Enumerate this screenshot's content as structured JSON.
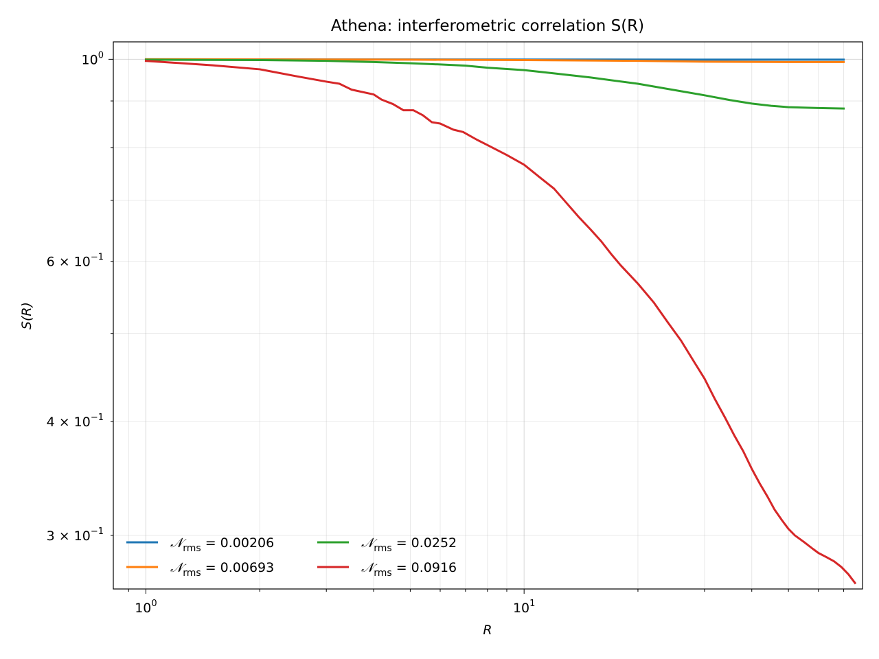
{
  "chart_data": {
    "type": "line",
    "title": "Athena: interferometric correlation S(R)",
    "xlabel": "R",
    "ylabel": "S(R)",
    "xscale": "log",
    "yscale": "log",
    "xlim": [
      0.82,
      78.5
    ],
    "ylim": [
      0.262,
      1.045
    ],
    "x_tick_labels": [
      {
        "value": 1,
        "mantissa": "",
        "base": "10",
        "exp": "0"
      },
      {
        "value": 10,
        "mantissa": "",
        "base": "10",
        "exp": "1"
      }
    ],
    "y_tick_labels": [
      {
        "value": 1.0,
        "mantissa": "",
        "base": "10",
        "exp": "0"
      },
      {
        "value": 0.6,
        "mantissa": "6 × ",
        "base": "10",
        "exp": "−1"
      },
      {
        "value": 0.4,
        "mantissa": "4 × ",
        "base": "10",
        "exp": "−1"
      },
      {
        "value": 0.3,
        "mantissa": "3 × ",
        "base": "10",
        "exp": "−1"
      }
    ],
    "grid": true,
    "legend_placement": "lower-left",
    "series": [
      {
        "name": "𝒩rms = 0.00206",
        "legend_symbol": "𝒩",
        "legend_sub": "rms",
        "legend_value": " = 0.00206",
        "color": "#1f77b4",
        "points": [
          [
            1,
            1.0
          ],
          [
            5,
            0.9995
          ],
          [
            10,
            0.9993
          ],
          [
            30,
            0.9992
          ],
          [
            70,
            0.999
          ]
        ]
      },
      {
        "name": "𝒩rms = 0.00693",
        "legend_symbol": "𝒩",
        "legend_sub": "rms",
        "legend_value": " = 0.00693",
        "color": "#ff7f0e",
        "points": [
          [
            1,
            1.0
          ],
          [
            5,
            0.999
          ],
          [
            10,
            0.998
          ],
          [
            20,
            0.996
          ],
          [
            30,
            0.994
          ],
          [
            50,
            0.993
          ],
          [
            70,
            0.993
          ]
        ]
      },
      {
        "name": "𝒩rms = 0.0252",
        "legend_symbol": "𝒩",
        "legend_sub": "rms",
        "legend_value": " = 0.0252",
        "color": "#2ca02c",
        "points": [
          [
            1,
            0.999
          ],
          [
            2,
            0.998
          ],
          [
            3,
            0.996
          ],
          [
            4,
            0.993
          ],
          [
            5,
            0.99
          ],
          [
            6,
            0.987
          ],
          [
            7,
            0.984
          ],
          [
            8,
            0.979
          ],
          [
            10,
            0.973
          ],
          [
            12,
            0.965
          ],
          [
            15,
            0.955
          ],
          [
            20,
            0.94
          ],
          [
            25,
            0.925
          ],
          [
            30,
            0.913
          ],
          [
            35,
            0.902
          ],
          [
            40,
            0.894
          ],
          [
            45,
            0.889
          ],
          [
            50,
            0.886
          ],
          [
            60,
            0.884
          ],
          [
            70,
            0.883
          ]
        ]
      },
      {
        "name": "𝒩rms = 0.0916",
        "legend_symbol": "𝒩",
        "legend_sub": "rms",
        "legend_value": " = 0.0916",
        "color": "#d62728",
        "points": [
          [
            1,
            0.996
          ],
          [
            1.5,
            0.985
          ],
          [
            2,
            0.975
          ],
          [
            2.5,
            0.958
          ],
          [
            3,
            0.945
          ],
          [
            3.25,
            0.94
          ],
          [
            3.5,
            0.926
          ],
          [
            4,
            0.915
          ],
          [
            4.2,
            0.903
          ],
          [
            4.5,
            0.893
          ],
          [
            4.8,
            0.879
          ],
          [
            5.1,
            0.879
          ],
          [
            5.4,
            0.868
          ],
          [
            5.7,
            0.853
          ],
          [
            6,
            0.85
          ],
          [
            6.5,
            0.837
          ],
          [
            6.9,
            0.832
          ],
          [
            7.5,
            0.816
          ],
          [
            8,
            0.805
          ],
          [
            9,
            0.785
          ],
          [
            10,
            0.766
          ],
          [
            11,
            0.742
          ],
          [
            12,
            0.721
          ],
          [
            13,
            0.694
          ],
          [
            14,
            0.67
          ],
          [
            15,
            0.65
          ],
          [
            16,
            0.631
          ],
          [
            17,
            0.611
          ],
          [
            18,
            0.594
          ],
          [
            19,
            0.58
          ],
          [
            20,
            0.567
          ],
          [
            22,
            0.541
          ],
          [
            24,
            0.514
          ],
          [
            26,
            0.491
          ],
          [
            28,
            0.467
          ],
          [
            30,
            0.446
          ],
          [
            32,
            0.423
          ],
          [
            34,
            0.404
          ],
          [
            36,
            0.386
          ],
          [
            38,
            0.371
          ],
          [
            40,
            0.355
          ],
          [
            42,
            0.342
          ],
          [
            44,
            0.331
          ],
          [
            46,
            0.32
          ],
          [
            48,
            0.312
          ],
          [
            50,
            0.305
          ],
          [
            52,
            0.3
          ],
          [
            55,
            0.295
          ],
          [
            58,
            0.29
          ],
          [
            60,
            0.287
          ],
          [
            63,
            0.284
          ],
          [
            66,
            0.281
          ],
          [
            69,
            0.277
          ],
          [
            72,
            0.272
          ],
          [
            75,
            0.266
          ]
        ]
      }
    ]
  }
}
